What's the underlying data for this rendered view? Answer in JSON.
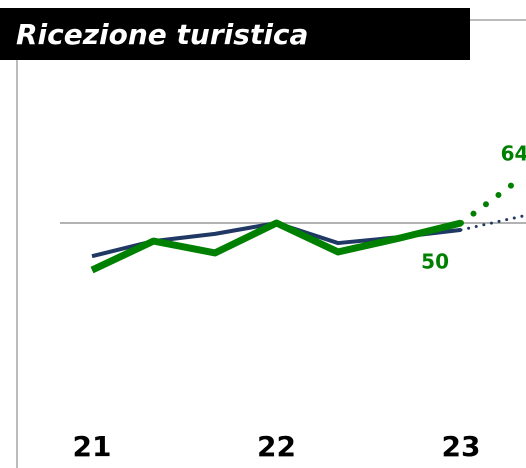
{
  "chart_data": {
    "type": "line",
    "title": "Ricezione turistica",
    "categories": [
      "21",
      null,
      null,
      "22",
      null,
      null,
      "23",
      null
    ],
    "series": [
      {
        "color": "#1f3864",
        "width": 4,
        "dash": "solid",
        "values": [
          39.9,
          44.5,
          46.7,
          50,
          43.9,
          45.7,
          47.9,
          null
        ]
      },
      {
        "color": "#1f3864",
        "width": 3,
        "dash": "dotted",
        "values": [
          null,
          null,
          null,
          null,
          null,
          null,
          47.9,
          52.1
        ]
      },
      {
        "color": "#008000",
        "width": 7,
        "dash": "solid",
        "values": [
          35.7,
          44.5,
          40.9,
          50,
          41.2,
          45.4,
          50,
          null
        ],
        "label_index": 6
      },
      {
        "color": "#008000",
        "width": 6,
        "dash": "dotted",
        "values": [
          null,
          null,
          null,
          null,
          null,
          null,
          50,
          64
        ],
        "label_index": 7
      }
    ],
    "ylim": [
      0,
      100
    ],
    "reference_line": 50
  }
}
